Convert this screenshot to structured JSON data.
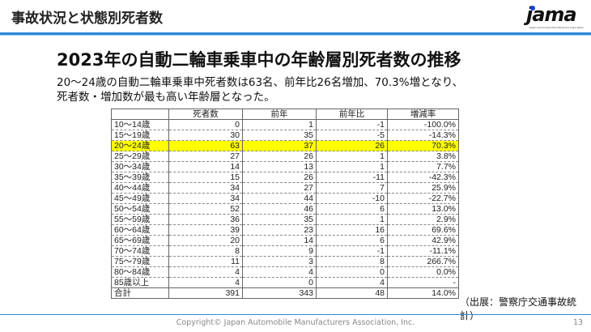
{
  "header": {
    "section_title": "事故状況と状態別死者数",
    "logo_text": "jama",
    "logo_subtext": "Japan Automobile Manufacturers Association",
    "accent_color": "#2e8bd6"
  },
  "main": {
    "title": "2023年の自動二輪車乗車中の年齢層別死者数の推移",
    "lead_lines": [
      "20～24歳の自動二輪車乗車中死者数は63名、前年比26名増加、70.3%増となり、",
      "死者数・増加数が最も高い年齢層となった。"
    ],
    "table": {
      "headers": [
        "",
        "死者数",
        "前年",
        "前年比",
        "増減率"
      ],
      "highlight_color": "#ffff00",
      "rows": [
        [
          "10～14歳",
          "0",
          "1",
          "-1",
          "-100.0%"
        ],
        [
          "15～19歳",
          "30",
          "35",
          "-5",
          "-14.3%"
        ],
        [
          "20～24歳",
          "63",
          "37",
          "26",
          "70.3%"
        ],
        [
          "25～29歳",
          "27",
          "26",
          "1",
          "3.8%"
        ],
        [
          "30～34歳",
          "14",
          "13",
          "1",
          "7.7%"
        ],
        [
          "35～39歳",
          "15",
          "26",
          "-11",
          "-42.3%"
        ],
        [
          "40～44歳",
          "34",
          "27",
          "7",
          "25.9%"
        ],
        [
          "45～49歳",
          "34",
          "44",
          "-10",
          "-22.7%"
        ],
        [
          "50～54歳",
          "52",
          "46",
          "6",
          "13.0%"
        ],
        [
          "55～59歳",
          "36",
          "35",
          "1",
          "2.9%"
        ],
        [
          "60～64歳",
          "39",
          "23",
          "16",
          "69.6%"
        ],
        [
          "65～69歳",
          "20",
          "14",
          "6",
          "42.9%"
        ],
        [
          "70～74歳",
          "8",
          "9",
          "-1",
          "-11.1%"
        ],
        [
          "75～79歳",
          "11",
          "3",
          "8",
          "266.7%"
        ],
        [
          "80～84歳",
          "4",
          "4",
          "0",
          "0.0%"
        ],
        [
          "85歳以上",
          "4",
          "0",
          "4",
          "-"
        ],
        [
          "合計",
          "391",
          "343",
          "48",
          "14.0%"
        ]
      ],
      "highlight_row": 2
    },
    "source": "（出展：警察庁交通事故統計）"
  },
  "footer": {
    "copyright": "Copyright© Japan Automobile Manufacturers Association, Inc.",
    "page": "13"
  }
}
